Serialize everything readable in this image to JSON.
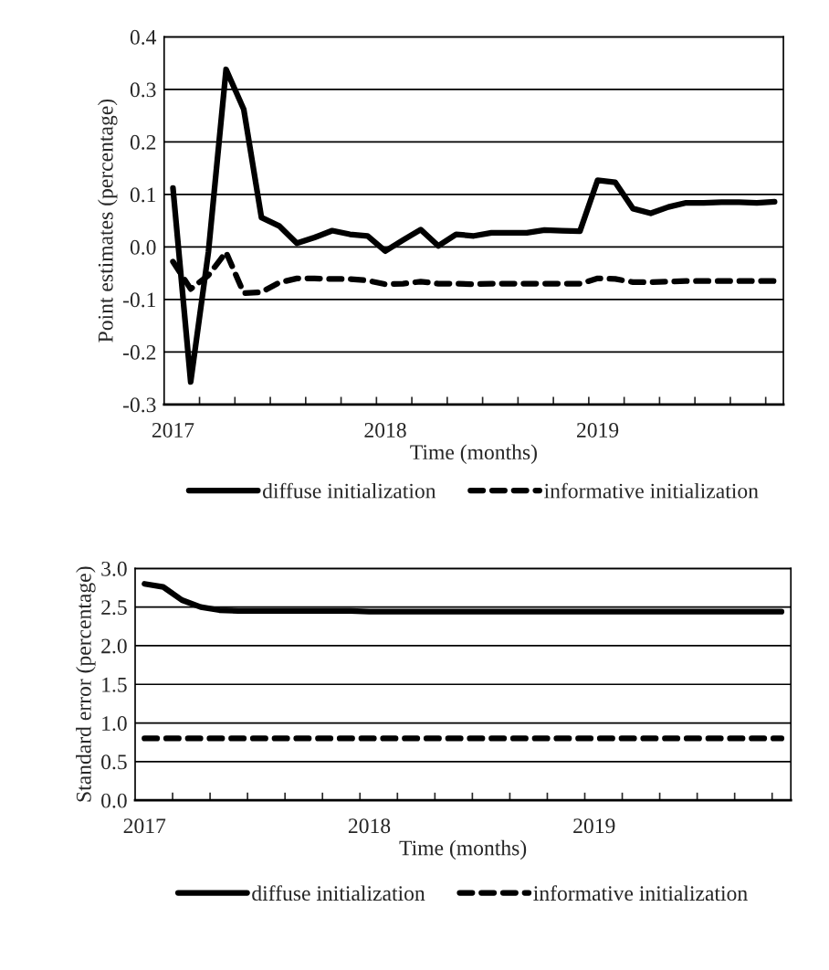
{
  "chart_data": [
    {
      "type": "line",
      "xlabel": "Time (months)",
      "ylabel": "Point estimates (percentage)",
      "categories": [
        "2017",
        null,
        null,
        null,
        null,
        null,
        null,
        null,
        null,
        null,
        null,
        null,
        "2018",
        null,
        null,
        null,
        null,
        null,
        null,
        null,
        null,
        null,
        null,
        null,
        "2019",
        null,
        null,
        null,
        null,
        null,
        null,
        null,
        null,
        null,
        null
      ],
      "series": [
        {
          "name": "diffuse initialization",
          "color": "#000000",
          "line_style": "solid",
          "values": [
            0.112,
            -0.257,
            -0.01,
            0.338,
            0.262,
            0.056,
            0.04,
            0.007,
            0.018,
            0.031,
            0.024,
            0.021,
            -0.008,
            0.013,
            0.033,
            0.002,
            0.024,
            0.021,
            0.027,
            0.027,
            0.027,
            0.032,
            0.031,
            0.03,
            0.127,
            0.123,
            0.073,
            0.064,
            0.076,
            0.084,
            0.084,
            0.085,
            0.085,
            0.084,
            0.086
          ]
        },
        {
          "name": "informative initialization",
          "color": "#000000",
          "line_style": "dashed",
          "values": [
            -0.028,
            -0.08,
            -0.054,
            -0.01,
            -0.088,
            -0.086,
            -0.068,
            -0.06,
            -0.06,
            -0.061,
            -0.061,
            -0.064,
            -0.071,
            -0.07,
            -0.066,
            -0.07,
            -0.07,
            -0.071,
            -0.07,
            -0.07,
            -0.07,
            -0.07,
            -0.07,
            -0.07,
            -0.06,
            -0.061,
            -0.067,
            -0.067,
            -0.066,
            -0.065,
            -0.065,
            -0.065,
            -0.065,
            -0.065,
            -0.065
          ]
        }
      ],
      "ylim": [
        -0.3,
        0.4
      ],
      "yticks": [
        {
          "value": -0.3,
          "label": "-0.3"
        },
        {
          "value": -0.2,
          "label": "-0.2"
        },
        {
          "value": -0.1,
          "label": "-0.1"
        },
        {
          "value": 0,
          "label": "0.0"
        },
        {
          "value": 0.1,
          "label": "0.1"
        },
        {
          "value": 0.2,
          "label": "0.2"
        },
        {
          "value": 0.3,
          "label": "0.3"
        },
        {
          "value": 0.4,
          "label": "0.4"
        }
      ],
      "grid": "y",
      "legend": "bottom"
    },
    {
      "type": "line",
      "xlabel": "Time (months)",
      "ylabel": "Standard error (percentage)",
      "categories": [
        "2017",
        null,
        null,
        null,
        null,
        null,
        null,
        null,
        null,
        null,
        null,
        null,
        "2018",
        null,
        null,
        null,
        null,
        null,
        null,
        null,
        null,
        null,
        null,
        null,
        "2019",
        null,
        null,
        null,
        null,
        null,
        null,
        null,
        null,
        null,
        null
      ],
      "series": [
        {
          "name": "diffuse initialization",
          "color": "#000000",
          "line_style": "solid",
          "values": [
            2.8,
            2.76,
            2.59,
            2.5,
            2.46,
            2.45,
            2.45,
            2.45,
            2.45,
            2.45,
            2.45,
            2.45,
            2.44,
            2.44,
            2.44,
            2.44,
            2.44,
            2.44,
            2.44,
            2.44,
            2.44,
            2.44,
            2.44,
            2.44,
            2.44,
            2.44,
            2.44,
            2.44,
            2.44,
            2.44,
            2.44,
            2.44,
            2.44,
            2.44,
            2.44
          ]
        },
        {
          "name": "informative initialization",
          "color": "#000000",
          "line_style": "dashed",
          "values": [
            0.8,
            0.8,
            0.8,
            0.8,
            0.8,
            0.8,
            0.8,
            0.8,
            0.8,
            0.8,
            0.8,
            0.8,
            0.8,
            0.8,
            0.8,
            0.8,
            0.8,
            0.8,
            0.8,
            0.8,
            0.8,
            0.8,
            0.8,
            0.8,
            0.8,
            0.8,
            0.8,
            0.8,
            0.8,
            0.8,
            0.8,
            0.8,
            0.8,
            0.8,
            0.8
          ]
        }
      ],
      "ylim": [
        0,
        3
      ],
      "yticks": [
        {
          "value": 0,
          "label": "0.0"
        },
        {
          "value": 0.5,
          "label": "0.5"
        },
        {
          "value": 1,
          "label": "1.0"
        },
        {
          "value": 1.5,
          "label": "1.5"
        },
        {
          "value": 2,
          "label": "2.0"
        },
        {
          "value": 2.5,
          "label": "2.5"
        },
        {
          "value": 3,
          "label": "3.0"
        }
      ],
      "grid": "y",
      "legend": "bottom"
    }
  ]
}
